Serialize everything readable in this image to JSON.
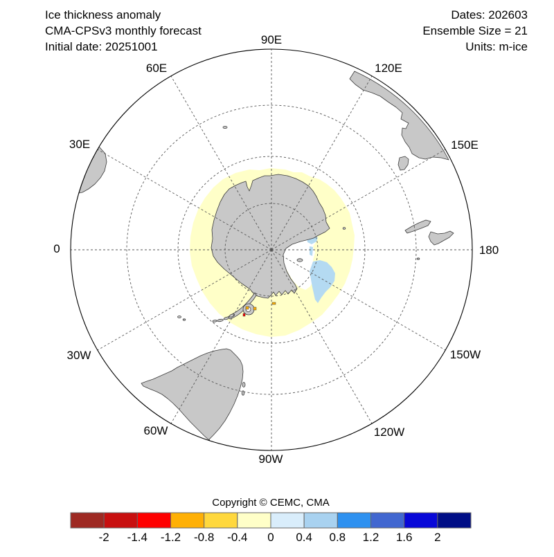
{
  "header": {
    "left": [
      "Ice thickness anomaly",
      "CMA-CPSv3 monthly forecast",
      "Initial date: 20251001"
    ],
    "right": [
      "Dates: 202603",
      "Ensemble Size = 21",
      "Units: m-ice"
    ]
  },
  "map": {
    "meridians": [
      {
        "label": "90E",
        "angle": 0
      },
      {
        "label": "120E",
        "angle": 30
      },
      {
        "label": "150E",
        "angle": 60
      },
      {
        "label": "180",
        "angle": 90
      },
      {
        "label": "150W",
        "angle": 120
      },
      {
        "label": "120W",
        "angle": 150
      },
      {
        "label": "90W",
        "angle": 180
      },
      {
        "label": "60W",
        "angle": 210
      },
      {
        "label": "30W",
        "angle": 240
      },
      {
        "label": "0",
        "angle": 270
      },
      {
        "label": "30E",
        "angle": 300
      },
      {
        "label": "60E",
        "angle": 330
      }
    ],
    "land_color": "#c8c8c8",
    "anomaly_colors": {
      "weak_negative": "#ffffc8",
      "weak_positive": "#b4daf2",
      "spot_orange": "#ffb005",
      "spot_red": "#fe0000"
    }
  },
  "copyright": "Copyright © CEMC, CMA",
  "colorbar": {
    "tick_labels": [
      "-2",
      "-1.4",
      "-1.2",
      "-0.8",
      "-0.4",
      "0",
      "0.4",
      "0.8",
      "1.2",
      "1.6",
      "2"
    ],
    "colors": [
      "#9e2a23",
      "#c81010",
      "#fe0000",
      "#ffb005",
      "#ffd83d",
      "#ffffc8",
      "#d9edfb",
      "#a9d2f0",
      "#2e91f0",
      "#4167d0",
      "#0808d8",
      "#000e86"
    ]
  }
}
